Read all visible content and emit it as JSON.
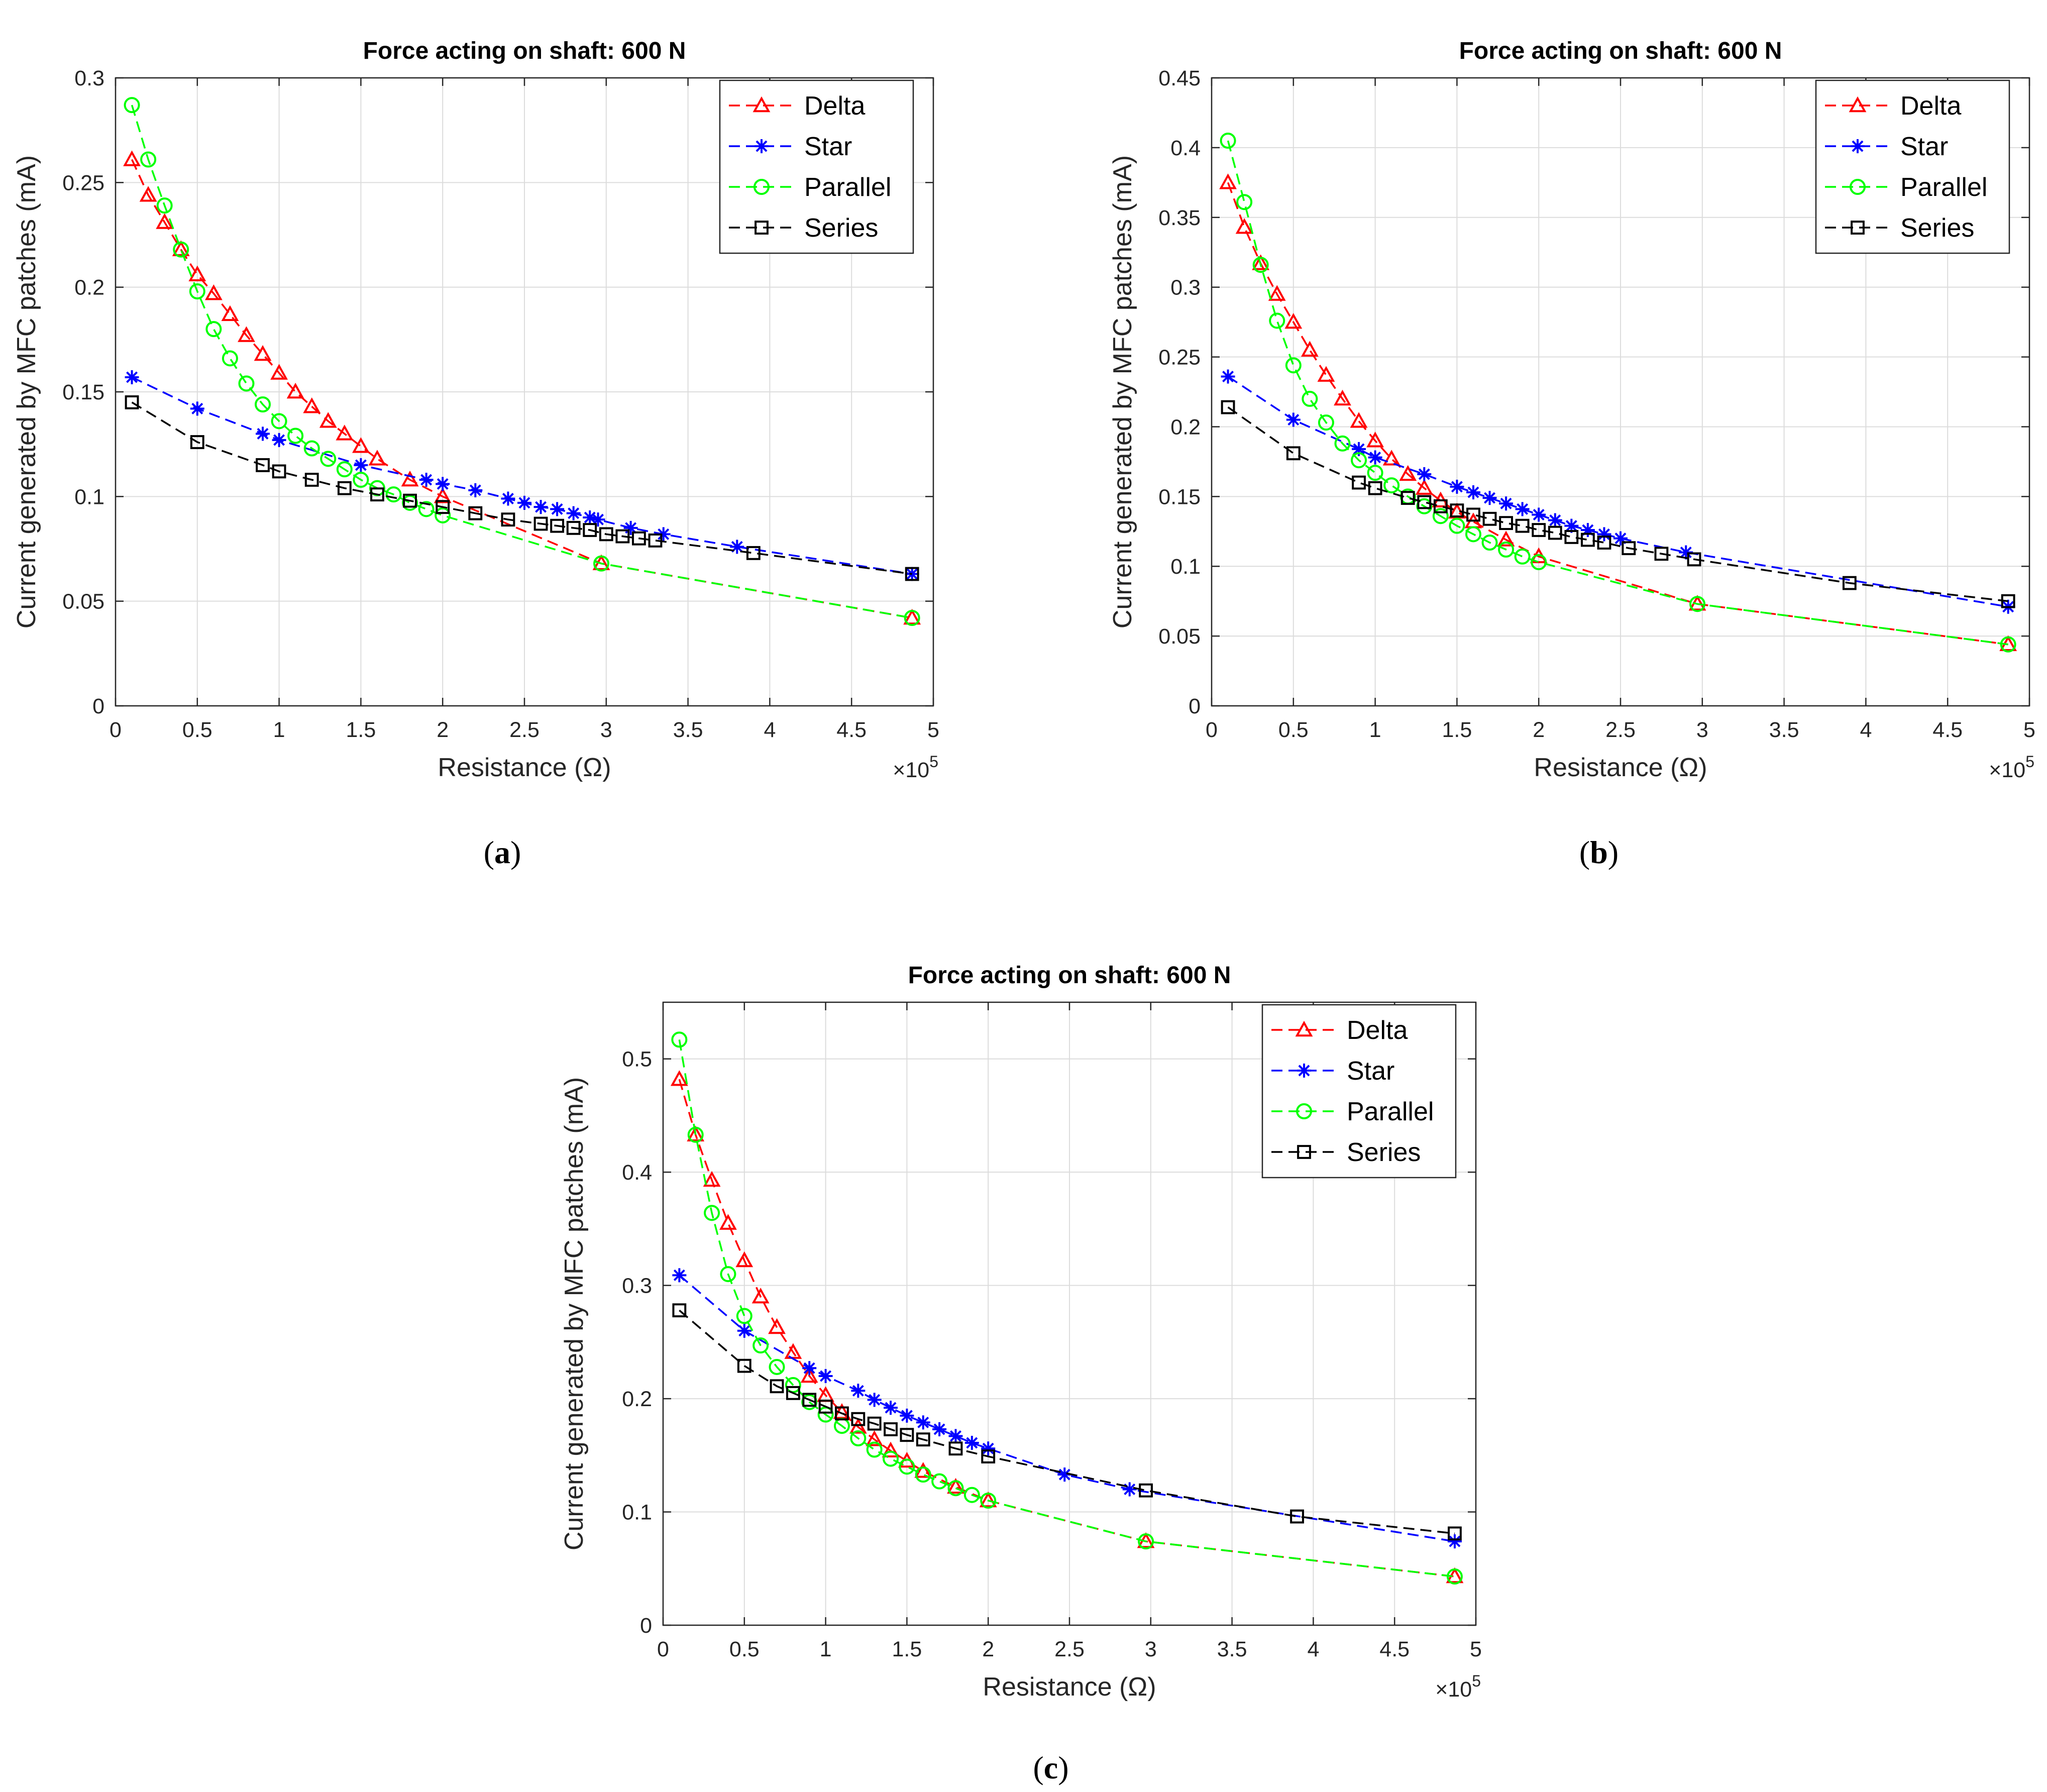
{
  "figure": {
    "captions": [
      "a",
      "b",
      "c"
    ]
  },
  "chart_data": [
    {
      "type": "line",
      "panel": "a",
      "title": "Force acting on shaft: 600 N",
      "xlabel": "Resistance (Ω)",
      "ylabel": "Current generated by MFC patches (mA)",
      "x_multiplier_label": "×10",
      "x_multiplier_exp": "5",
      "xlim": [
        0,
        5
      ],
      "ylim": [
        0,
        0.3
      ],
      "xticks": [
        0,
        0.5,
        1,
        1.5,
        2,
        2.5,
        3,
        3.5,
        4,
        4.5,
        5
      ],
      "yticks": [
        0,
        0.05,
        0.1,
        0.15,
        0.2,
        0.25,
        0.3
      ],
      "grid": true,
      "legend_position": "top-right",
      "series": [
        {
          "name": "Delta",
          "color": "#ff0000",
          "marker": "triangle",
          "x": [
            0.1,
            0.2,
            0.3,
            0.4,
            0.5,
            0.6,
            0.7,
            0.8,
            0.9,
            1.0,
            1.1,
            1.2,
            1.3,
            1.4,
            1.5,
            1.6,
            1.8,
            2.0,
            2.97,
            4.87
          ],
          "y": [
            0.261,
            0.244,
            0.231,
            0.218,
            0.206,
            0.197,
            0.187,
            0.177,
            0.168,
            0.159,
            0.15,
            0.143,
            0.136,
            0.13,
            0.124,
            0.118,
            0.108,
            0.1,
            0.068,
            0.042
          ]
        },
        {
          "name": "Star",
          "color": "#0000ff",
          "marker": "star",
          "x": [
            0.1,
            0.5,
            0.9,
            1.0,
            1.5,
            1.9,
            2.0,
            2.2,
            2.4,
            2.5,
            2.6,
            2.7,
            2.8,
            2.9,
            2.95,
            3.15,
            3.35,
            3.8,
            4.87
          ],
          "y": [
            0.157,
            0.142,
            0.13,
            0.127,
            0.115,
            0.108,
            0.106,
            0.103,
            0.099,
            0.097,
            0.095,
            0.094,
            0.092,
            0.09,
            0.089,
            0.085,
            0.082,
            0.076,
            0.063
          ]
        },
        {
          "name": "Parallel",
          "color": "#00ff00",
          "marker": "circle",
          "x": [
            0.1,
            0.2,
            0.3,
            0.4,
            0.5,
            0.6,
            0.7,
            0.8,
            0.9,
            1.0,
            1.1,
            1.2,
            1.3,
            1.4,
            1.5,
            1.6,
            1.7,
            1.8,
            1.9,
            2.0,
            2.97,
            4.87
          ],
          "y": [
            0.287,
            0.261,
            0.239,
            0.218,
            0.198,
            0.18,
            0.166,
            0.154,
            0.144,
            0.136,
            0.129,
            0.123,
            0.118,
            0.113,
            0.108,
            0.104,
            0.101,
            0.097,
            0.094,
            0.091,
            0.068,
            0.042
          ]
        },
        {
          "name": "Series",
          "color": "#000000",
          "marker": "square",
          "x": [
            0.1,
            0.5,
            0.9,
            1.0,
            1.2,
            1.4,
            1.6,
            1.8,
            2.0,
            2.2,
            2.4,
            2.6,
            2.7,
            2.8,
            2.9,
            3.0,
            3.1,
            3.2,
            3.3,
            3.9,
            4.87
          ],
          "y": [
            0.145,
            0.126,
            0.115,
            0.112,
            0.108,
            0.104,
            0.101,
            0.098,
            0.095,
            0.092,
            0.089,
            0.087,
            0.086,
            0.085,
            0.084,
            0.082,
            0.081,
            0.08,
            0.079,
            0.073,
            0.063
          ]
        }
      ]
    },
    {
      "type": "line",
      "panel": "b",
      "title": "Force acting on shaft: 600 N",
      "xlabel": "Resistance (Ω)",
      "ylabel": "Current generated by MFC patches (mA)",
      "x_multiplier_label": "×10",
      "x_multiplier_exp": "5",
      "xlim": [
        0,
        5
      ],
      "ylim": [
        0,
        0.45
      ],
      "xticks": [
        0,
        0.5,
        1,
        1.5,
        2,
        2.5,
        3,
        3.5,
        4,
        4.5,
        5
      ],
      "yticks": [
        0,
        0.05,
        0.1,
        0.15,
        0.2,
        0.25,
        0.3,
        0.35,
        0.4,
        0.45
      ],
      "grid": true,
      "legend_position": "top-right",
      "series": [
        {
          "name": "Delta",
          "color": "#ff0000",
          "marker": "triangle",
          "x": [
            0.1,
            0.2,
            0.3,
            0.4,
            0.5,
            0.6,
            0.7,
            0.8,
            0.9,
            1.0,
            1.1,
            1.2,
            1.3,
            1.4,
            1.5,
            1.6,
            1.8,
            2.0,
            2.97,
            4.87
          ],
          "y": [
            0.375,
            0.343,
            0.317,
            0.295,
            0.275,
            0.255,
            0.237,
            0.22,
            0.204,
            0.19,
            0.177,
            0.166,
            0.156,
            0.147,
            0.139,
            0.132,
            0.119,
            0.107,
            0.073,
            0.044
          ]
        },
        {
          "name": "Star",
          "color": "#0000ff",
          "marker": "star",
          "x": [
            0.1,
            0.5,
            0.9,
            1.0,
            1.3,
            1.5,
            1.6,
            1.7,
            1.8,
            1.9,
            2.0,
            2.1,
            2.2,
            2.3,
            2.4,
            2.5,
            2.9,
            4.87
          ],
          "y": [
            0.236,
            0.205,
            0.184,
            0.178,
            0.166,
            0.157,
            0.153,
            0.149,
            0.145,
            0.141,
            0.137,
            0.133,
            0.129,
            0.126,
            0.123,
            0.12,
            0.11,
            0.071
          ]
        },
        {
          "name": "Parallel",
          "color": "#00ff00",
          "marker": "circle",
          "x": [
            0.1,
            0.2,
            0.3,
            0.4,
            0.5,
            0.6,
            0.7,
            0.8,
            0.9,
            1.0,
            1.1,
            1.2,
            1.3,
            1.4,
            1.5,
            1.6,
            1.7,
            1.8,
            1.9,
            2.0,
            2.97,
            4.87
          ],
          "y": [
            0.405,
            0.361,
            0.316,
            0.276,
            0.244,
            0.22,
            0.203,
            0.188,
            0.176,
            0.167,
            0.158,
            0.15,
            0.143,
            0.136,
            0.129,
            0.123,
            0.117,
            0.112,
            0.107,
            0.103,
            0.073,
            0.044
          ]
        },
        {
          "name": "Series",
          "color": "#000000",
          "marker": "square",
          "x": [
            0.1,
            0.5,
            0.9,
            1.0,
            1.2,
            1.3,
            1.4,
            1.5,
            1.6,
            1.7,
            1.8,
            1.9,
            2.0,
            2.1,
            2.2,
            2.3,
            2.4,
            2.55,
            2.75,
            2.95,
            3.9,
            4.87
          ],
          "y": [
            0.214,
            0.181,
            0.16,
            0.156,
            0.149,
            0.146,
            0.143,
            0.14,
            0.137,
            0.134,
            0.131,
            0.129,
            0.126,
            0.124,
            0.121,
            0.119,
            0.117,
            0.113,
            0.109,
            0.105,
            0.088,
            0.075
          ]
        }
      ]
    },
    {
      "type": "line",
      "panel": "c",
      "title": "Force acting on shaft: 600 N",
      "xlabel": "Resistance (Ω)",
      "ylabel": "Current generated by MFC patches (mA)",
      "x_multiplier_label": "×10",
      "x_multiplier_exp": "5",
      "xlim": [
        0,
        5
      ],
      "ylim": [
        0,
        0.55
      ],
      "xticks": [
        0,
        0.5,
        1,
        1.5,
        2,
        2.5,
        3,
        3.5,
        4,
        4.5,
        5
      ],
      "yticks": [
        0,
        0.1,
        0.2,
        0.3,
        0.4,
        0.5
      ],
      "grid": true,
      "legend_position": "top-right",
      "series": [
        {
          "name": "Delta",
          "color": "#ff0000",
          "marker": "triangle",
          "x": [
            0.1,
            0.2,
            0.3,
            0.4,
            0.5,
            0.6,
            0.7,
            0.8,
            0.9,
            1.0,
            1.1,
            1.2,
            1.3,
            1.4,
            1.5,
            1.6,
            1.8,
            2.0,
            2.97,
            4.87
          ],
          "y": [
            0.482,
            0.433,
            0.393,
            0.355,
            0.322,
            0.29,
            0.263,
            0.241,
            0.22,
            0.203,
            0.188,
            0.175,
            0.164,
            0.154,
            0.145,
            0.136,
            0.122,
            0.11,
            0.074,
            0.043
          ]
        },
        {
          "name": "Star",
          "color": "#0000ff",
          "marker": "star",
          "x": [
            0.1,
            0.5,
            0.9,
            1.0,
            1.2,
            1.3,
            1.4,
            1.5,
            1.6,
            1.7,
            1.8,
            1.9,
            2.0,
            2.47,
            2.87,
            4.87
          ],
          "y": [
            0.309,
            0.26,
            0.227,
            0.22,
            0.207,
            0.199,
            0.192,
            0.185,
            0.179,
            0.173,
            0.167,
            0.161,
            0.156,
            0.133,
            0.12,
            0.074
          ]
        },
        {
          "name": "Parallel",
          "color": "#00ff00",
          "marker": "circle",
          "x": [
            0.1,
            0.2,
            0.3,
            0.4,
            0.5,
            0.6,
            0.7,
            0.8,
            0.9,
            1.0,
            1.1,
            1.2,
            1.3,
            1.4,
            1.5,
            1.6,
            1.7,
            1.8,
            1.9,
            2.0,
            2.97,
            4.87
          ],
          "y": [
            0.517,
            0.433,
            0.364,
            0.31,
            0.273,
            0.247,
            0.228,
            0.212,
            0.197,
            0.186,
            0.176,
            0.165,
            0.155,
            0.147,
            0.14,
            0.133,
            0.127,
            0.121,
            0.115,
            0.11,
            0.074,
            0.043
          ]
        },
        {
          "name": "Series",
          "color": "#000000",
          "marker": "square",
          "x": [
            0.1,
            0.5,
            0.7,
            0.8,
            0.9,
            1.0,
            1.1,
            1.2,
            1.3,
            1.4,
            1.5,
            1.6,
            1.8,
            2.0,
            2.97,
            3.9,
            4.87
          ],
          "y": [
            0.278,
            0.229,
            0.211,
            0.205,
            0.199,
            0.193,
            0.187,
            0.182,
            0.178,
            0.173,
            0.168,
            0.164,
            0.156,
            0.149,
            0.119,
            0.096,
            0.081
          ]
        }
      ]
    }
  ]
}
